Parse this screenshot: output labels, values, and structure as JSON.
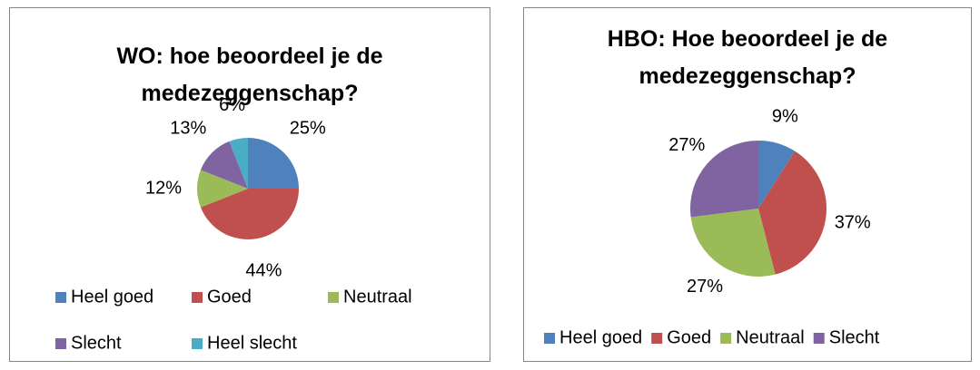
{
  "chart_data": [
    {
      "type": "pie",
      "title": "WO: hoe beoordeel je de medezeggenschap?",
      "categories": [
        "Heel goed",
        "Goed",
        "Neutraal",
        "Slecht",
        "Heel slecht"
      ],
      "values": [
        25,
        44,
        12,
        13,
        6
      ],
      "value_labels": [
        "25%",
        "44%",
        "12%",
        "13%",
        "6%"
      ],
      "colors": [
        "#4f81bd",
        "#c0504d",
        "#9bbb59",
        "#8064a2",
        "#4bacc6"
      ],
      "legend": "bottom"
    },
    {
      "type": "pie",
      "title": "HBO: Hoe beoordeel je de medezeggenschap?",
      "categories": [
        "Heel goed",
        "Goed",
        "Neutraal",
        "Slecht"
      ],
      "values": [
        9,
        37,
        27,
        27
      ],
      "value_labels": [
        "9%",
        "37%",
        "27%",
        "27%"
      ],
      "colors": [
        "#4f81bd",
        "#c0504d",
        "#9bbb59",
        "#8064a2"
      ],
      "legend": "bottom"
    }
  ]
}
